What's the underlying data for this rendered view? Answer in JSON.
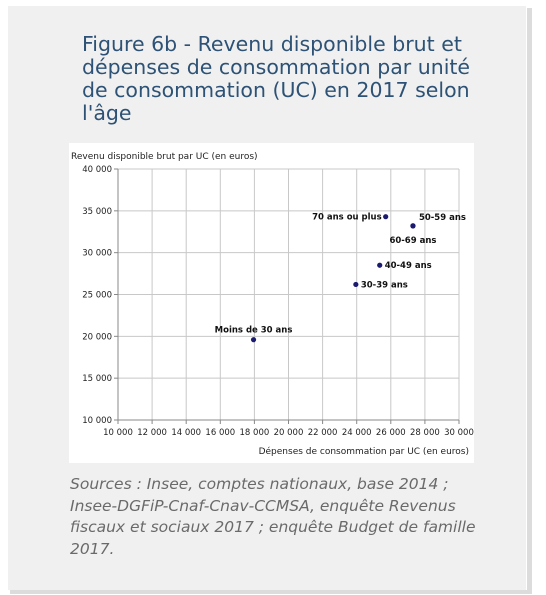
{
  "figure": {
    "title": "Figure 6b - Revenu disponible brut et dépenses de consommation par unité de consommation (UC) en 2017 selon l'âge",
    "sources": "Sources : Insee, comptes nationaux, base 2014 ; Insee-DGFiP-Cnaf-Cnav-CCMSA, enquête Revenus fiscaux et sociaux 2017 ; enquête Budget de famille 2017."
  },
  "colors": {
    "title": "#2d5275",
    "point": "#1a1a6e",
    "grid": "#c8c8c8",
    "text": "#222222"
  },
  "chart_data": {
    "type": "scatter",
    "xlabel": "Dépenses de consommation par UC (en euros)",
    "ylabel": "Revenu disponible brut par UC (en euros)",
    "xlim": [
      10000,
      30000
    ],
    "ylim": [
      10000,
      40000
    ],
    "xticks": [
      10000,
      12000,
      14000,
      16000,
      18000,
      20000,
      22000,
      24000,
      26000,
      28000,
      30000
    ],
    "yticks": [
      10000,
      15000,
      20000,
      25000,
      30000,
      35000,
      40000
    ],
    "xtick_labels": [
      "10 000",
      "12 000",
      "14 000",
      "16 000",
      "18 000",
      "20 000",
      "22 000",
      "24 000",
      "26 000",
      "28 000",
      "30 000"
    ],
    "ytick_labels": [
      "10 000",
      "15 000",
      "20 000",
      "25 000",
      "30 000",
      "35 000",
      "40 000"
    ],
    "grid": true,
    "points": [
      {
        "label": "Moins de 30 ans",
        "x": 17950,
        "y": 19600
      },
      {
        "label": "30-39 ans",
        "x": 23950,
        "y": 26200
      },
      {
        "label": "40-49 ans",
        "x": 25350,
        "y": 28500
      },
      {
        "label": "50-59 ans",
        "x": 27300,
        "y": 33200
      },
      {
        "label": "60-69 ans",
        "x": 27300,
        "y": 33200
      },
      {
        "label": "70 ans ou plus",
        "x": 25700,
        "y": 34300
      }
    ]
  }
}
